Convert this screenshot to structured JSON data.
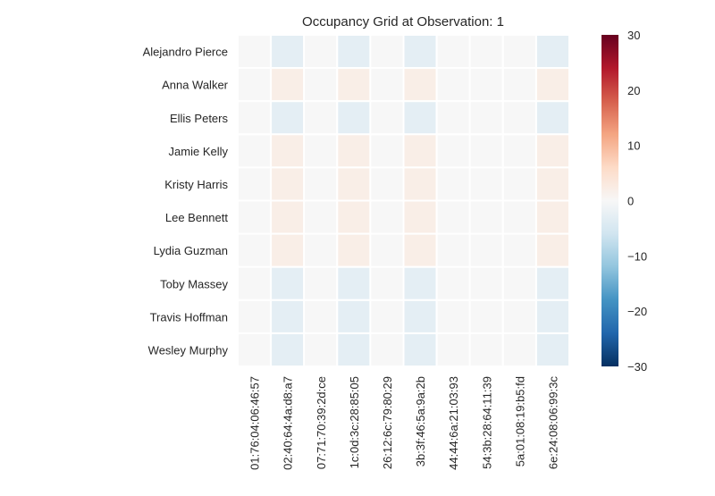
{
  "chart_data": {
    "type": "heatmap",
    "title": "Occupancy Grid at Observation: 1",
    "xlabel": "",
    "ylabel": "",
    "rows": [
      "Alejandro Pierce",
      "Anna Walker",
      "Ellis Peters",
      "Jamie Kelly",
      "Kristy Harris",
      "Lee Bennett",
      "Lydia Guzman",
      "Toby Massey",
      "Travis Hoffman",
      "Wesley Murphy"
    ],
    "columns": [
      "01:76:04:06:46:57",
      "02:40:64:4a:d8:a7",
      "07:71:70:39:2d:ce",
      "1c:0d:3c:28:85:05",
      "26:12:6c:79:80:29",
      "3b:3f:46:5a:9a:2b",
      "44:44:6a:21:03:93",
      "54:3b:28:64:11:39",
      "5a:01:08:19:b5:fd",
      "6e:24:08:06:99:3c"
    ],
    "values": [
      [
        0,
        -3,
        0,
        -3,
        0,
        -3,
        0,
        0,
        0,
        -3
      ],
      [
        0,
        2,
        0,
        2,
        0,
        2,
        0,
        0,
        0,
        2
      ],
      [
        0,
        -3,
        0,
        -3,
        0,
        -3,
        0,
        0,
        0,
        -3
      ],
      [
        0,
        2,
        0,
        2,
        0,
        2,
        0,
        0,
        0,
        2
      ],
      [
        0,
        2,
        0,
        2,
        0,
        2,
        0,
        0,
        0,
        2
      ],
      [
        0,
        2,
        0,
        2,
        0,
        2,
        0,
        0,
        0,
        2
      ],
      [
        0,
        2,
        0,
        2,
        0,
        2,
        0,
        0,
        0,
        2
      ],
      [
        0,
        -3,
        0,
        -3,
        0,
        -3,
        0,
        0,
        0,
        -3
      ],
      [
        0,
        -3,
        0,
        -3,
        0,
        -3,
        0,
        0,
        0,
        -3
      ],
      [
        0,
        -3,
        0,
        -3,
        0,
        -3,
        0,
        0,
        0,
        -3
      ]
    ],
    "colorbar": {
      "vmin": -30,
      "vmax": 30,
      "ticks": [
        30,
        20,
        10,
        0,
        -10,
        -20,
        -30
      ],
      "colormap": "RdBu_r",
      "stops": [
        "#053061",
        "#2166ac",
        "#4393c3",
        "#92c5de",
        "#d1e5f0",
        "#f7f7f7",
        "#fddbc7",
        "#f4a582",
        "#d6604d",
        "#b2182b",
        "#67001f"
      ]
    },
    "grid": false,
    "cell_separator_color": "#ffffff"
  }
}
